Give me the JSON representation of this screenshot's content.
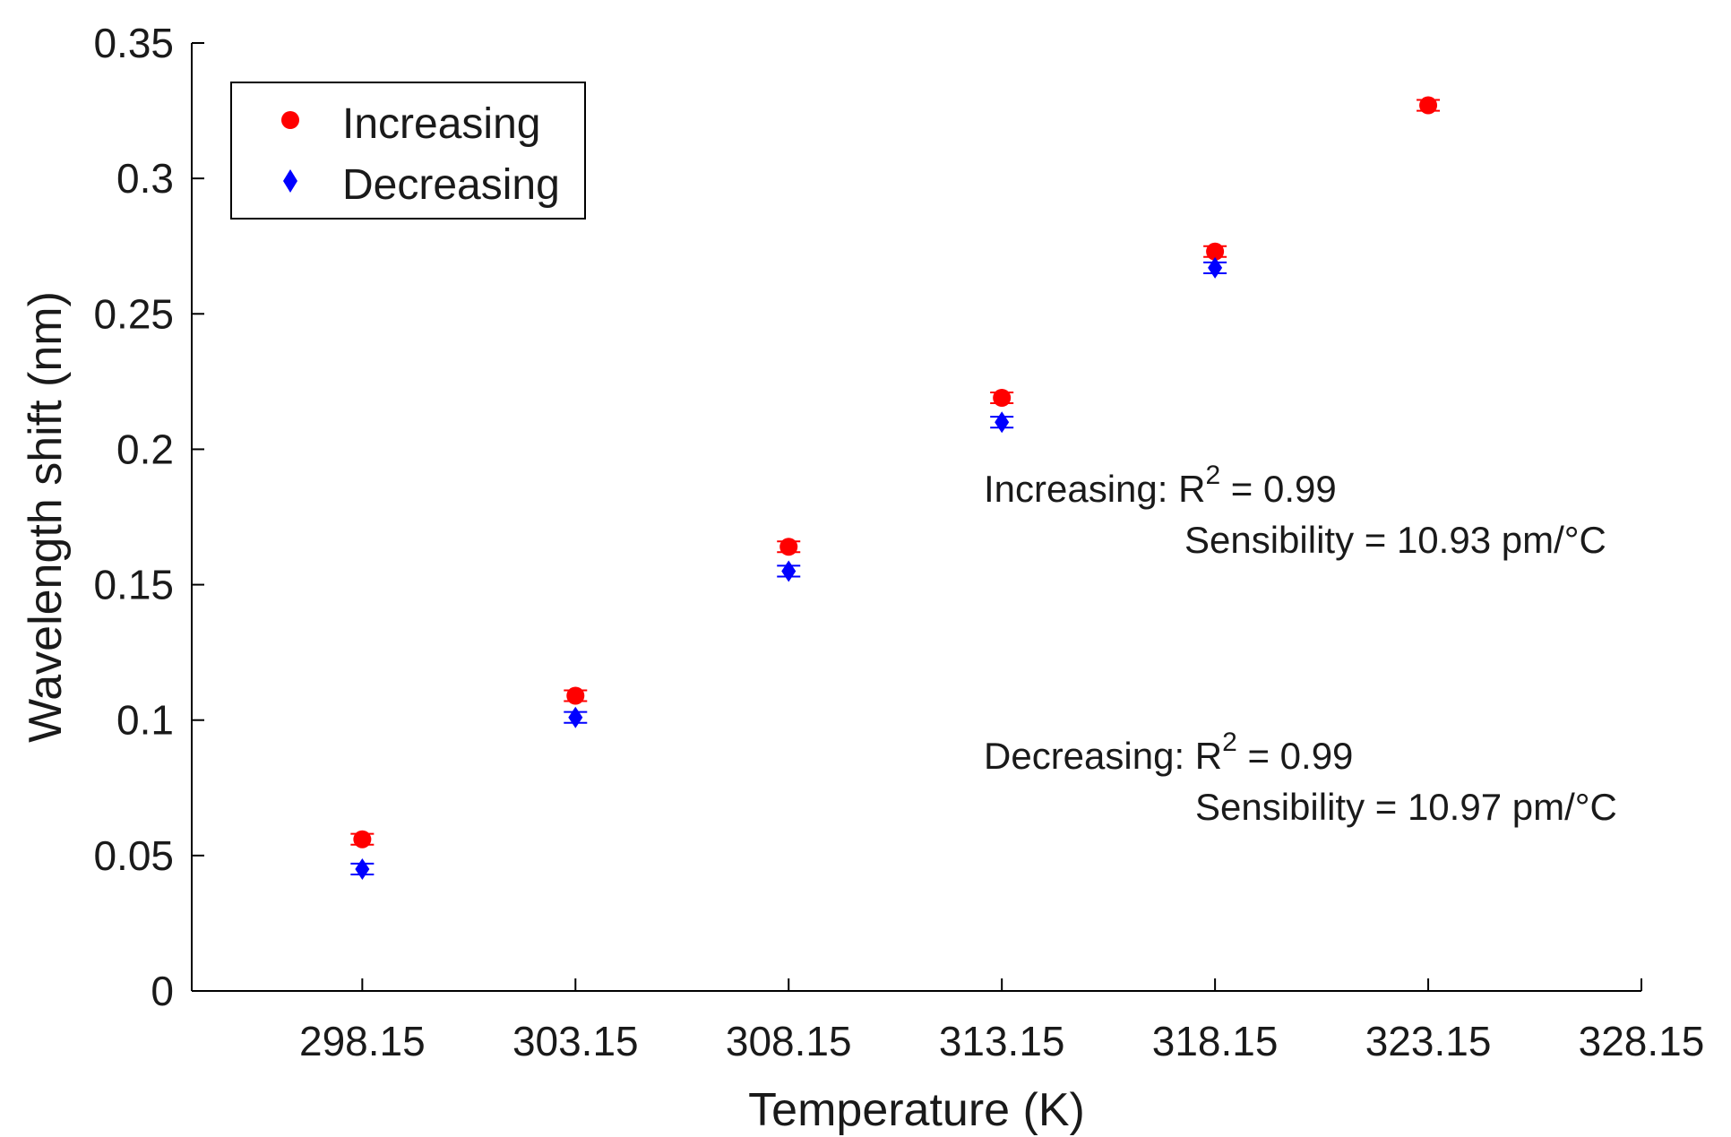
{
  "chart_data": {
    "type": "scatter",
    "title": "",
    "xlabel": "Temperature (K)",
    "ylabel": "Wavelength shift (nm)",
    "xlim": [
      294.15,
      328.15
    ],
    "ylim": [
      0,
      0.35
    ],
    "x_ticks": [
      298.15,
      303.15,
      308.15,
      313.15,
      318.15,
      323.15,
      328.15
    ],
    "x_tick_labels": [
      "298.15",
      "303.15",
      "308.15",
      "313.15",
      "318.15",
      "323.15",
      "328.15"
    ],
    "y_ticks": [
      0,
      0.05,
      0.1,
      0.15,
      0.2,
      0.25,
      0.3,
      0.35
    ],
    "y_tick_labels": [
      "0",
      "0.05",
      "0.1",
      "0.15",
      "0.2",
      "0.25",
      "0.3",
      "0.35"
    ],
    "grid": false,
    "legend_position": "top-left",
    "series": [
      {
        "name": "Increasing",
        "color": "#ff0000",
        "marker": "circle",
        "x": [
          298.15,
          303.15,
          308.15,
          313.15,
          318.15,
          323.15
        ],
        "values": [
          0.056,
          0.109,
          0.164,
          0.219,
          0.273,
          0.327
        ],
        "error": [
          0.002,
          0.002,
          0.002,
          0.002,
          0.002,
          0.002
        ]
      },
      {
        "name": "Decreasing",
        "color": "#0000ff",
        "marker": "diamond",
        "x": [
          298.15,
          303.15,
          308.15,
          313.15,
          318.15
        ],
        "values": [
          0.045,
          0.101,
          0.155,
          0.21,
          0.267
        ],
        "error": [
          0.002,
          0.002,
          0.002,
          0.002,
          0.002
        ]
      }
    ],
    "annotations": {
      "inc_line1_prefix": "Increasing: R",
      "inc_line1_sup": "2",
      "inc_line1_suffix": " = 0.99",
      "inc_line2": "Sensibility = 10.93 pm/°C",
      "dec_line1_prefix": "Decreasing: R",
      "dec_line1_sup": "2",
      "dec_line1_suffix": " = 0.99",
      "dec_line2": "Sensibility = 10.97 pm/°C"
    }
  }
}
